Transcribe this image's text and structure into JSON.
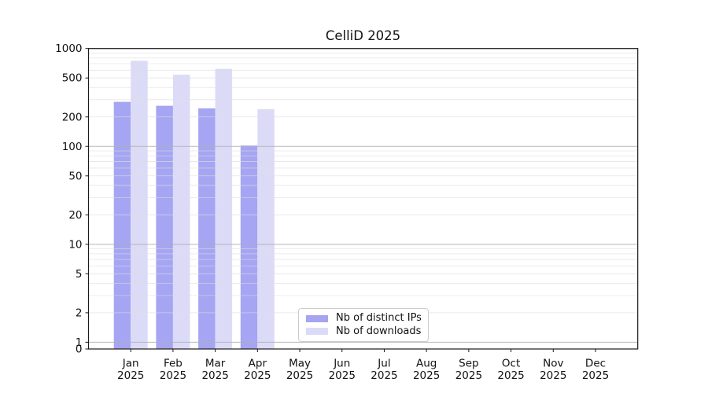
{
  "chart_data": {
    "type": "bar",
    "title": "CelliD 2025",
    "year": "2025",
    "categories": [
      "Jan",
      "Feb",
      "Mar",
      "Apr",
      "May",
      "Jun",
      "Jul",
      "Aug",
      "Sep",
      "Oct",
      "Nov",
      "Dec"
    ],
    "series": [
      {
        "name": "Nb of distinct IPs",
        "color": "#a5a5f3",
        "values": [
          285,
          260,
          245,
          102,
          0,
          0,
          0,
          0,
          0,
          0,
          0,
          0
        ]
      },
      {
        "name": "Nb of downloads",
        "color": "#dbdbf8",
        "values": [
          750,
          540,
          620,
          240,
          0,
          0,
          0,
          0,
          0,
          0,
          0,
          0
        ]
      }
    ],
    "yscale": "symlog",
    "ylim": [
      0,
      1000
    ],
    "yticks": [
      0,
      1,
      2,
      5,
      10,
      20,
      50,
      100,
      200,
      500,
      1000
    ],
    "xlabel": "",
    "ylabel": "",
    "grid": "both",
    "bar_width": 0.4,
    "legend_position": "lower center"
  }
}
